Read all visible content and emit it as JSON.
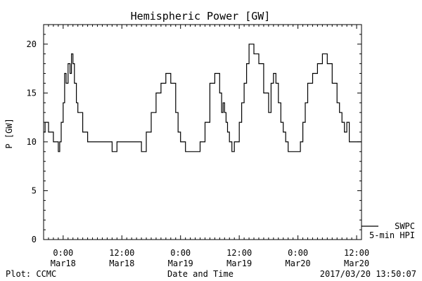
{
  "chart_data": {
    "type": "line",
    "title": "Hemispheric Power [GW]",
    "xlabel": "Date and Time",
    "ylabel": "P [GW]",
    "ylim": [
      0,
      22
    ],
    "yticks": [
      0,
      5,
      10,
      15,
      20
    ],
    "x_unit": "hours since 2017-03-17 20:00 UT",
    "xlim": [
      0,
      65
    ],
    "xticks": [
      {
        "x": 4,
        "time": "0:00",
        "date": "Mar18"
      },
      {
        "x": 16,
        "time": "12:00",
        "date": "Mar18"
      },
      {
        "x": 28,
        "time": "0:00",
        "date": "Mar19"
      },
      {
        "x": 40,
        "time": "12:00",
        "date": "Mar19"
      },
      {
        "x": 52,
        "time": "0:00",
        "date": "Mar20"
      },
      {
        "x": 64,
        "time": "12:00",
        "date": "Mar20"
      }
    ],
    "grid": false,
    "legend_position": "bottom-right",
    "series": [
      {
        "name": "SWPC",
        "legend": [
          "SWPC",
          "5-min HPI"
        ],
        "color": "#000000",
        "x": [
          0,
          0.3,
          0.6,
          1,
          1.5,
          2,
          2.5,
          3,
          3.3,
          3.6,
          4,
          4.3,
          4.6,
          5,
          5.4,
          5.7,
          6,
          6.3,
          6.7,
          7,
          7.5,
          8,
          9,
          10,
          12,
          14,
          15,
          16,
          17,
          18,
          19,
          20,
          21,
          22,
          23,
          24,
          25,
          26,
          27,
          27.5,
          28,
          28.5,
          29,
          30,
          31,
          32,
          33,
          34,
          35,
          36,
          36.4,
          36.7,
          37,
          37.3,
          37.6,
          38,
          38.5,
          39,
          40,
          40.5,
          41,
          41.5,
          42,
          43,
          44,
          45,
          46,
          46.5,
          47,
          47.5,
          48,
          48.5,
          49,
          49.5,
          50,
          50.5,
          51,
          51.5,
          52,
          52.5,
          53,
          53.5,
          54,
          55,
          56,
          57,
          58,
          59,
          60,
          60.5,
          61,
          61.5,
          62,
          62.5,
          63,
          63.5,
          64,
          64.5,
          65
        ],
        "y": [
          11,
          12,
          12,
          11,
          11,
          10,
          10,
          9,
          10,
          12,
          14,
          17,
          16,
          18,
          17,
          19,
          18,
          16,
          14,
          13,
          13,
          11,
          10,
          10,
          10,
          9,
          10,
          10,
          10,
          10,
          10,
          9,
          11,
          13,
          15,
          16,
          17,
          16,
          13,
          11,
          10,
          10,
          9,
          9,
          9,
          10,
          12,
          16,
          17,
          15,
          13,
          14,
          13,
          12,
          11,
          10,
          9,
          10,
          12,
          14,
          16,
          18,
          20,
          19,
          18,
          15,
          13,
          16,
          17,
          16,
          14,
          12,
          11,
          10,
          9,
          9,
          9,
          9,
          9,
          10,
          12,
          14,
          16,
          17,
          18,
          19,
          18,
          16,
          14,
          13,
          12,
          11,
          12,
          10,
          10,
          10,
          10,
          10,
          10
        ]
      }
    ]
  },
  "footer": {
    "left": "Plot: CCMC",
    "center": "Date and Time",
    "right": "2017/03/20 13:50:07"
  }
}
